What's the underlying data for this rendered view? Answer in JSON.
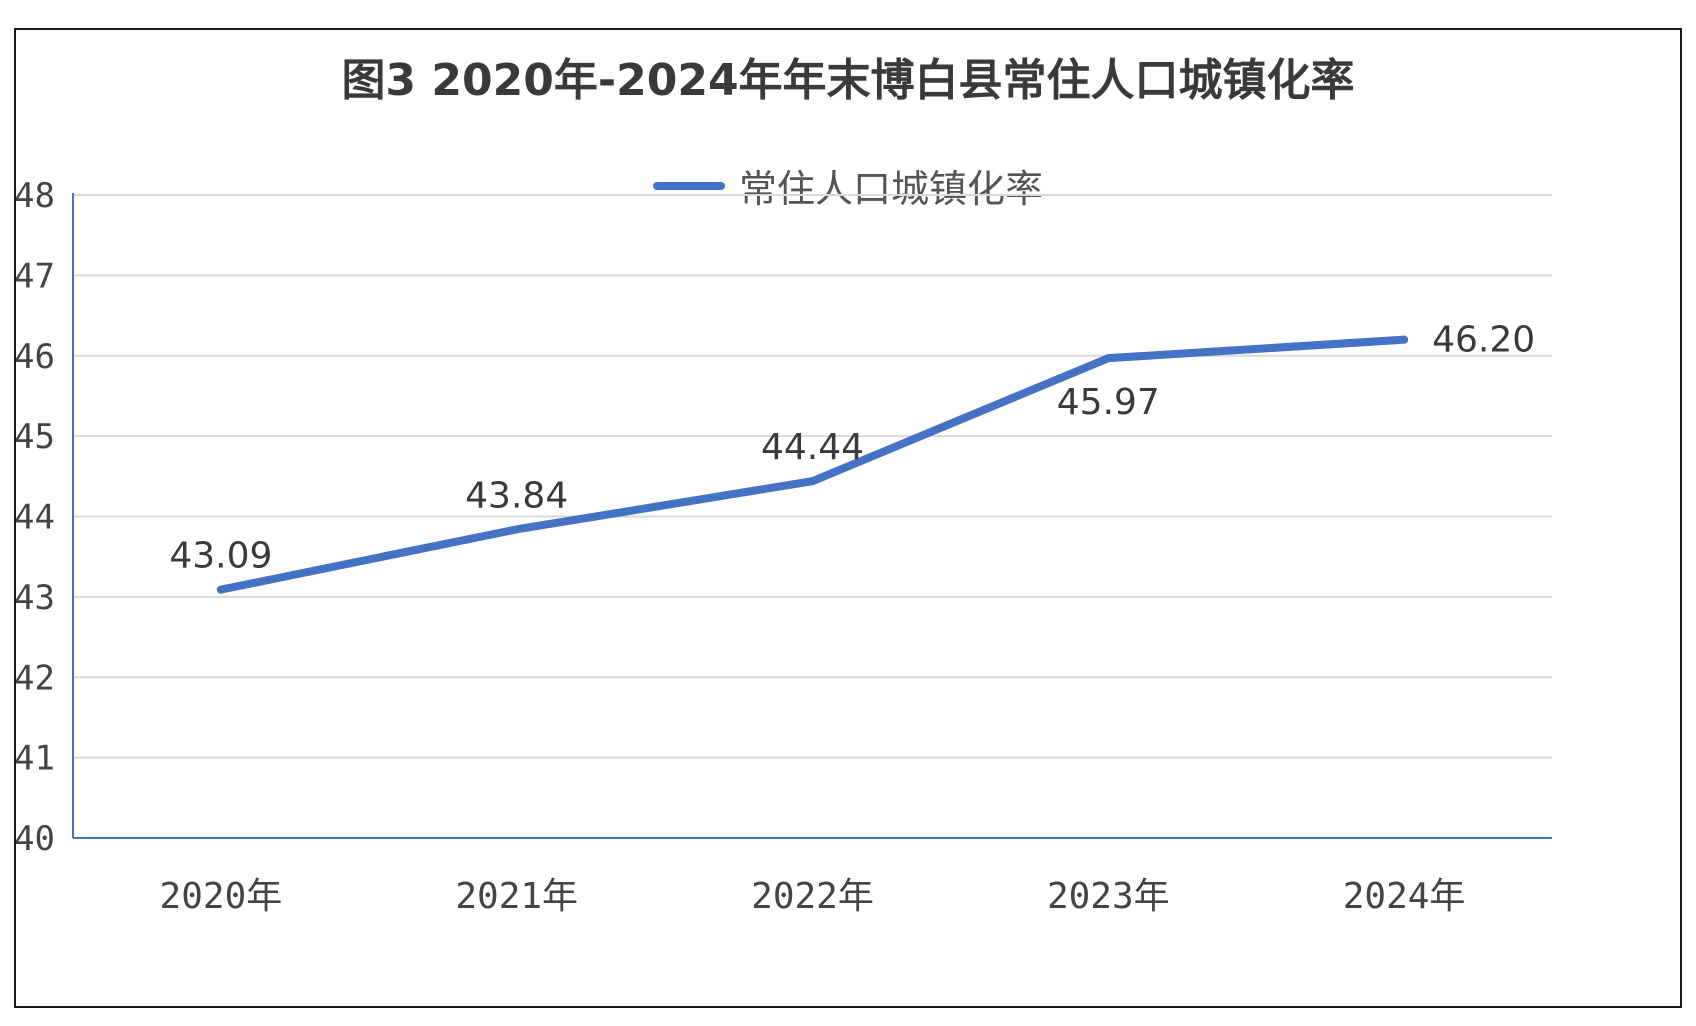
{
  "chart_data": {
    "type": "line",
    "title": "图3 2020年-2024年年末博白县常住人口城镇化率",
    "xlabel": "",
    "ylabel": "",
    "categories": [
      "2020年",
      "2021年",
      "2022年",
      "2023年",
      "2024年"
    ],
    "series": [
      {
        "name": "常住人口城镇化率",
        "values": [
          43.09,
          43.84,
          44.44,
          45.97,
          46.2
        ],
        "labels": [
          "43.09",
          "43.84",
          "44.44",
          "45.97",
          "46.20"
        ],
        "color": "#4472c4"
      }
    ],
    "ylim": [
      40,
      48
    ],
    "yticks": [
      "40",
      "41",
      "42",
      "43",
      "44",
      "45",
      "46",
      "47",
      "48"
    ],
    "grid": true,
    "legend_position": "top-center"
  },
  "colors": {
    "series": "#4472c4",
    "grid": "#d9d9d9",
    "axis": "#4472c4"
  }
}
